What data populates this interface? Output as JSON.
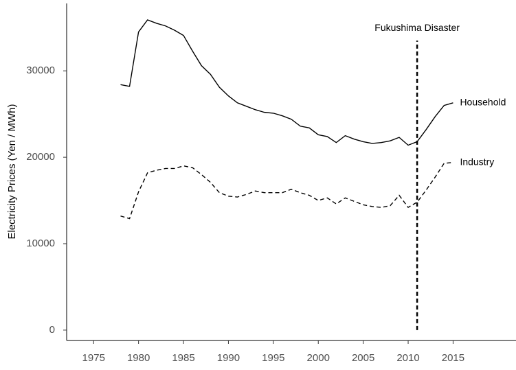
{
  "chart_data": {
    "type": "line",
    "y_label": "Electricity Prices (Yen / MWh)",
    "x": [
      1978,
      1979,
      1980,
      1981,
      1982,
      1983,
      1984,
      1985,
      1986,
      1987,
      1988,
      1989,
      1990,
      1991,
      1992,
      1993,
      1994,
      1995,
      1996,
      1997,
      1998,
      1999,
      2000,
      2001,
      2002,
      2003,
      2004,
      2005,
      2006,
      2007,
      2008,
      2009,
      2010,
      2011,
      2012,
      2013,
      2014,
      2015
    ],
    "series": [
      {
        "name": "Household",
        "color": "#000000",
        "dash": false,
        "values": [
          28400,
          28200,
          34500,
          35900,
          35500,
          35200,
          34700,
          34100,
          32300,
          30600,
          29600,
          28100,
          27100,
          26300,
          25900,
          25500,
          25200,
          25100,
          24800,
          24400,
          23600,
          23400,
          22600,
          22400,
          21700,
          22500,
          22100,
          21800,
          21600,
          21700,
          21900,
          22300,
          21400,
          21800,
          23200,
          24700,
          26000,
          26300
        ]
      },
      {
        "name": "Industry",
        "color": "#000000",
        "dash": true,
        "values": [
          13200,
          12900,
          16000,
          18200,
          18500,
          18700,
          18700,
          19000,
          18800,
          18000,
          17100,
          15900,
          15500,
          15400,
          15700,
          16100,
          15900,
          15900,
          15900,
          16300,
          15900,
          15600,
          15000,
          15300,
          14600,
          15300,
          14900,
          14500,
          14300,
          14200,
          14400,
          15600,
          14200,
          14800,
          16200,
          17700,
          19300,
          19400
        ]
      }
    ],
    "annotation": {
      "text": "Fukushima Disaster",
      "x": 2011,
      "y_range": [
        0,
        33500
      ]
    },
    "xlim": [
      1972,
      2022
    ],
    "xticks": [
      1975,
      1980,
      1985,
      1990,
      1995,
      2000,
      2005,
      2010,
      2015
    ],
    "ylim": [
      -1200,
      37800
    ],
    "yticks": [
      0,
      10000,
      20000,
      30000
    ],
    "grid": false
  }
}
